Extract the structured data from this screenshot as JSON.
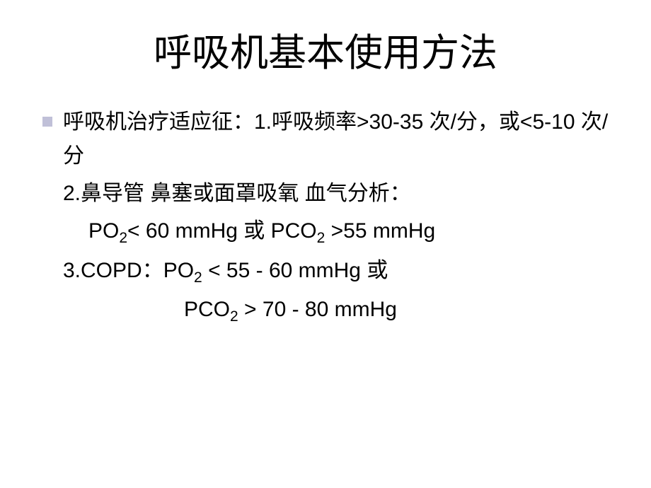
{
  "slide": {
    "title": "呼吸机基本使用方法",
    "background_color": "#ffffff",
    "title_fontsize": 54,
    "body_fontsize": 30,
    "bullet_color": "#c0c0d8",
    "text_color": "#000000",
    "line1_prefix": "呼吸机治疗适应征：",
    "line1_label": "1.呼吸频率>30-35 次/分，或<5-10 次/分",
    "line2": "2.鼻导管 鼻塞或面罩吸氧 血气分析：",
    "line3_po2": "PO",
    "line3_sub1": "2",
    "line3_mid": "< 60  mmHg 或 PCO",
    "line3_sub2": "2",
    "line3_end": " >55 mmHg",
    "line4_start": "3.COPD：PO",
    "line4_sub1": "2",
    "line4_mid": " < 55 - 60 mmHg 或",
    "line5_start": "PCO",
    "line5_sub1": "2",
    "line5_end": " > 70 - 80 mmHg"
  }
}
